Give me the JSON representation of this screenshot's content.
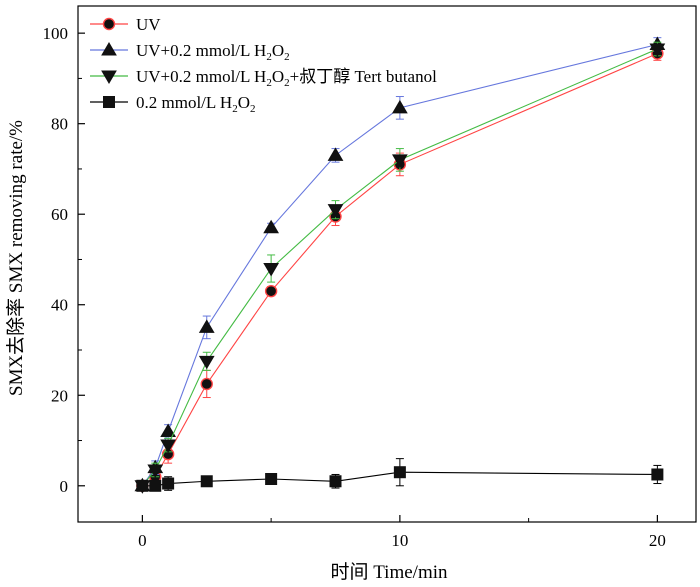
{
  "chart_data": {
    "type": "line",
    "xlabel": "时间 Time/min",
    "ylabel": "SMX去除率 SMX removing rate/%",
    "xlim": [
      -2.5,
      21.5
    ],
    "ylim": [
      -8,
      106
    ],
    "x_ticks": [
      0,
      10,
      20
    ],
    "y_ticks": [
      0,
      20,
      40,
      60,
      80,
      100
    ],
    "grid": false,
    "legend_position": "top-left",
    "series": [
      {
        "name": "UV",
        "legend": {
          "pre": "UV",
          "sub1": "",
          "mid": "",
          "sub2": "",
          "post": ""
        },
        "color": "#ff4444",
        "marker": "circle",
        "x": [
          0,
          0.5,
          1,
          2.5,
          5,
          7.5,
          10,
          20
        ],
        "y": [
          0,
          2,
          7,
          22.5,
          43,
          59.5,
          71,
          95.5
        ],
        "err": [
          1,
          1.5,
          2,
          3,
          1,
          2,
          2.5,
          1.5
        ]
      },
      {
        "name": "UV+0.2 mmol/L H2O2",
        "legend": {
          "pre": "UV+0.2 mmol/L H",
          "sub1": "2",
          "mid": "O",
          "sub2": "2",
          "post": ""
        },
        "color": "#6677dd",
        "marker": "triangle-up",
        "x": [
          0,
          0.5,
          1,
          2.5,
          5,
          7.5,
          10,
          20
        ],
        "y": [
          0,
          4,
          12,
          35,
          57,
          73,
          83.5,
          97.5
        ],
        "err": [
          1,
          1.5,
          1.5,
          2.5,
          1,
          1.5,
          2.5,
          1.5
        ]
      },
      {
        "name": "UV+0.2 mmol/L H2O2+叔丁醇 Tert butanol",
        "legend": {
          "pre": "UV+0.2 mmol/L H",
          "sub1": "2",
          "mid": "O",
          "sub2": "2",
          "post": "+叔丁醇 Tert butanol"
        },
        "color": "#44bb44",
        "marker": "triangle-down",
        "x": [
          0,
          0.5,
          1,
          2.5,
          5,
          7.5,
          10,
          20
        ],
        "y": [
          0,
          3.5,
          9,
          27.5,
          48,
          61,
          72,
          96.5
        ],
        "err": [
          1,
          1.5,
          1.5,
          2,
          3,
          2,
          2.5,
          1.5
        ]
      },
      {
        "name": "0.2 mmol/L H2O2",
        "legend": {
          "pre": "0.2 mmol/L H",
          "sub1": "2",
          "mid": "O",
          "sub2": "2",
          "post": ""
        },
        "color": "#000000",
        "marker": "square",
        "x": [
          0,
          0.5,
          1,
          2.5,
          5,
          7.5,
          10,
          20
        ],
        "y": [
          0,
          0,
          0.5,
          1,
          1.5,
          1,
          3,
          2.5
        ],
        "err": [
          1,
          1,
          1.5,
          1,
          1,
          1.5,
          3,
          2
        ]
      }
    ]
  }
}
